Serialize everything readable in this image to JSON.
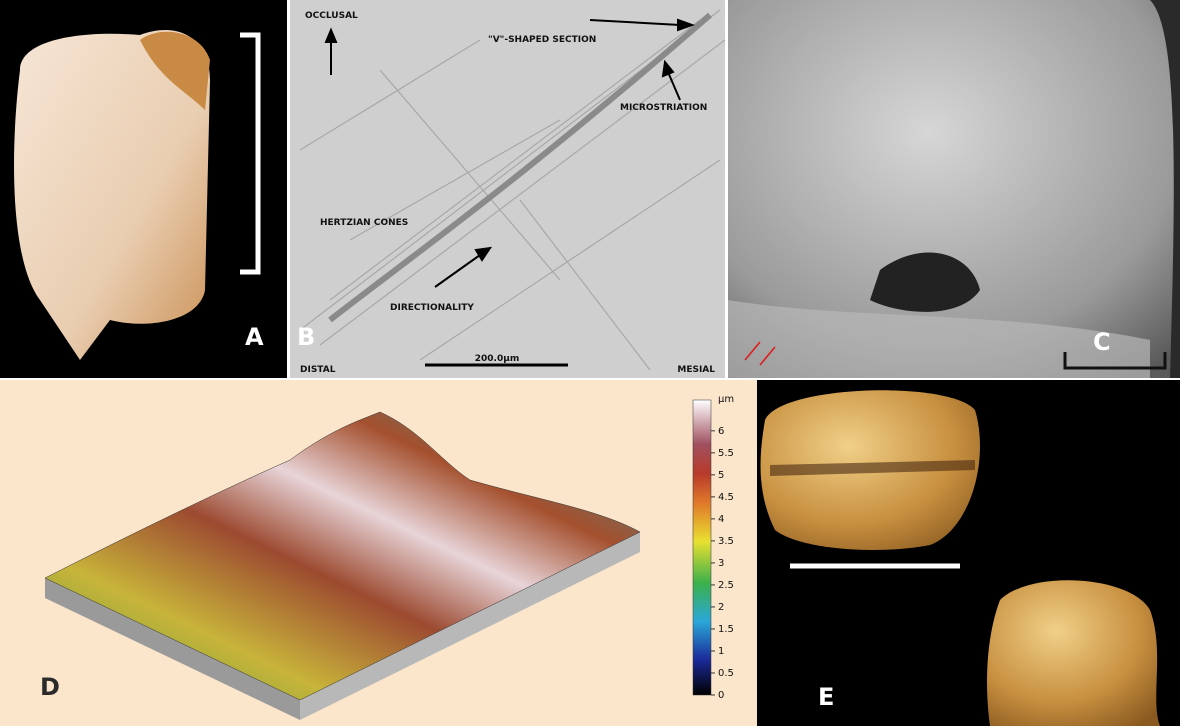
{
  "panels": [
    {
      "label": "A"
    },
    {
      "label": "B",
      "annotations": [
        "OCCLUSAL",
        "\"V\"-SHAPED SECTION",
        "MICROSTRIATION",
        "HERTZIAN CONES",
        "DIRECTIONALITY",
        "DISTAL",
        "MESIAL"
      ],
      "scale_bar": "200.0µm"
    },
    {
      "label": "C"
    },
    {
      "label": "D",
      "colorbar": {
        "unit": "µm",
        "range": [
          0,
          6.7
        ],
        "ticks": [
          0,
          0.5,
          1,
          1.5,
          2,
          2.5,
          3,
          3.5,
          4,
          4.5,
          5,
          5.5,
          6
        ]
      }
    },
    {
      "label": "E"
    }
  ]
}
